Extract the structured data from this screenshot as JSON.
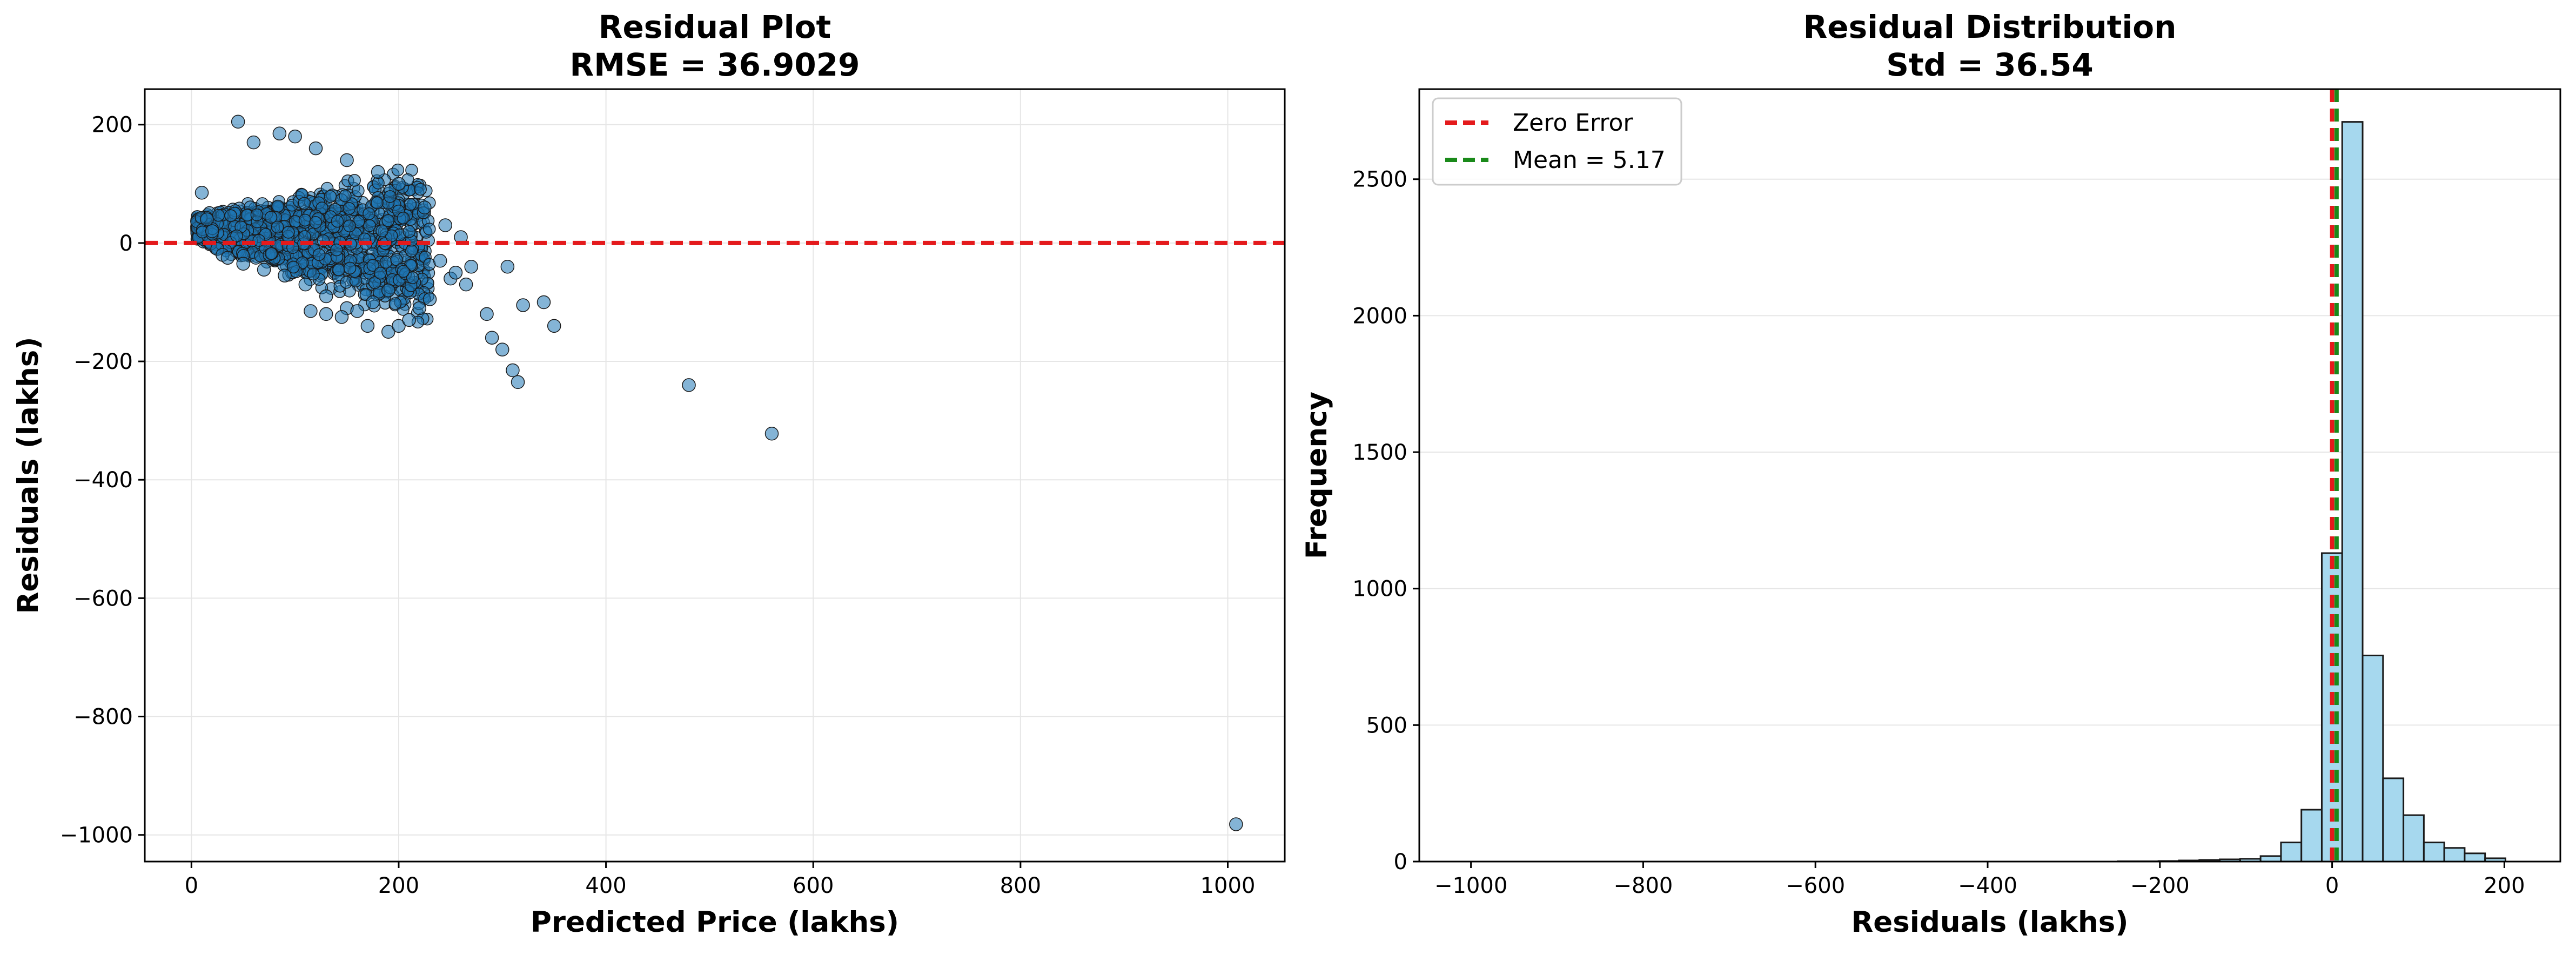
{
  "chart_data": [
    {
      "type": "scatter",
      "title": "Residual Plot",
      "subtitle": "RMSE = 36.9029",
      "xlabel": "Predicted Price (lakhs)",
      "ylabel": "Residuals (lakhs)",
      "xlim": [
        -45,
        1055
      ],
      "ylim": [
        -1045,
        260
      ],
      "xticks": [
        0,
        200,
        400,
        600,
        800,
        1000
      ],
      "xtick_labels": [
        "0",
        "200",
        "400",
        "600",
        "800",
        "1000"
      ],
      "yticks": [
        200,
        0,
        -200,
        -400,
        -600,
        -800,
        -1000
      ],
      "ytick_labels": [
        "200",
        "0",
        "−200",
        "−400",
        "−600",
        "−800",
        "−1000"
      ],
      "grid": true,
      "reference_line": {
        "y": 0,
        "color": "#e41a1c",
        "style": "dashed"
      },
      "point_color": "#1f77b4",
      "points": [
        [
          45,
          205
        ],
        [
          85,
          185
        ],
        [
          100,
          180
        ],
        [
          60,
          170
        ],
        [
          120,
          160
        ],
        [
          150,
          140
        ],
        [
          180,
          120
        ],
        [
          200,
          100
        ],
        [
          225,
          60
        ],
        [
          245,
          30
        ],
        [
          260,
          10
        ],
        [
          10,
          85
        ],
        [
          15,
          40
        ],
        [
          20,
          20
        ],
        [
          25,
          -10
        ],
        [
          30,
          -20
        ],
        [
          35,
          -25
        ],
        [
          50,
          -35
        ],
        [
          70,
          -45
        ],
        [
          90,
          -55
        ],
        [
          110,
          -70
        ],
        [
          130,
          -90
        ],
        [
          150,
          -110
        ],
        [
          170,
          -140
        ],
        [
          190,
          -150
        ],
        [
          200,
          -140
        ],
        [
          210,
          -130
        ],
        [
          220,
          -110
        ],
        [
          230,
          -95
        ],
        [
          250,
          -60
        ],
        [
          270,
          -40
        ],
        [
          285,
          -120
        ],
        [
          290,
          -160
        ],
        [
          300,
          -180
        ],
        [
          305,
          -40
        ],
        [
          310,
          -215
        ],
        [
          315,
          -235
        ],
        [
          320,
          -105
        ],
        [
          340,
          -100
        ],
        [
          350,
          -140
        ],
        [
          480,
          -240
        ],
        [
          560,
          -322
        ],
        [
          1008,
          -982
        ],
        [
          265,
          -70
        ],
        [
          255,
          -50
        ],
        [
          240,
          -30
        ],
        [
          130,
          -120
        ],
        [
          115,
          -115
        ],
        [
          145,
          -125
        ],
        [
          160,
          -115
        ],
        [
          175,
          -100
        ],
        [
          190,
          -80
        ]
      ]
    },
    {
      "type": "bar",
      "title": "Residual Distribution",
      "subtitle": "Std = 36.54",
      "xlabel": "Residuals (lakhs)",
      "ylabel": "Frequency",
      "xlim": [
        -1060,
        265
      ],
      "ylim": [
        0,
        2830
      ],
      "xticks": [
        -1000,
        -800,
        -600,
        -400,
        -200,
        0,
        200
      ],
      "xtick_labels": [
        "−1000",
        "−800",
        "−600",
        "−400",
        "−200",
        "0",
        "200"
      ],
      "yticks": [
        0,
        500,
        1000,
        1500,
        2000,
        2500
      ],
      "ytick_labels": [
        "0",
        "500",
        "1000",
        "1500",
        "2000",
        "2500"
      ],
      "grid": true,
      "bar_color": "#a6d8ee",
      "bin_width": 23.7,
      "bins": [
        [
          -249.0,
          1
        ],
        [
          -225.3,
          1
        ],
        [
          -201.6,
          2
        ],
        [
          -177.9,
          4
        ],
        [
          -154.2,
          6
        ],
        [
          -130.5,
          8
        ],
        [
          -106.8,
          10
        ],
        [
          -83.1,
          20
        ],
        [
          -59.4,
          70
        ],
        [
          -35.7,
          190
        ],
        [
          -12.0,
          1130
        ],
        [
          11.7,
          2710
        ],
        [
          35.4,
          755
        ],
        [
          59.1,
          305
        ],
        [
          82.8,
          170
        ],
        [
          106.5,
          70
        ],
        [
          130.2,
          50
        ],
        [
          153.9,
          30
        ],
        [
          177.6,
          12
        ]
      ],
      "lines": [
        {
          "x": 0,
          "color": "#e41a1c",
          "style": "dashed"
        },
        {
          "x": 5.17,
          "color": "#1a8a1a",
          "style": "dashed"
        }
      ],
      "legend": {
        "position": "top-left",
        "entries": [
          {
            "label": "Zero Error",
            "color": "#e41a1c"
          },
          {
            "label": "Mean = 5.17",
            "color": "#1a8a1a"
          }
        ]
      }
    }
  ]
}
